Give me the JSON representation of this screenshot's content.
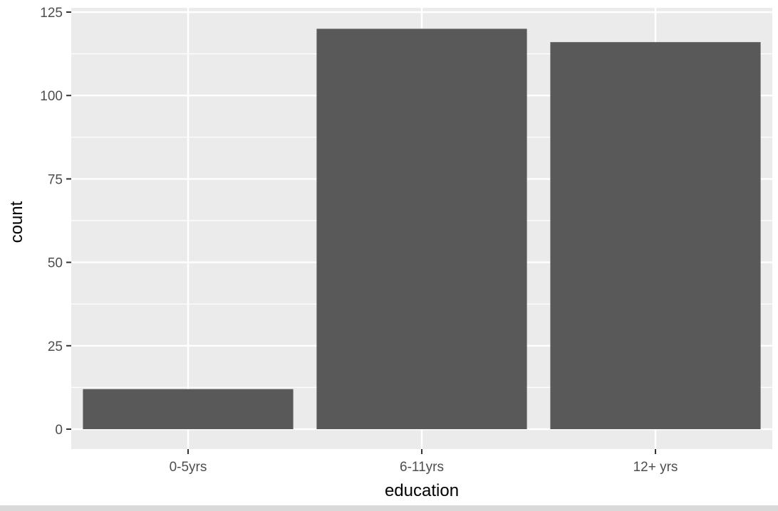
{
  "chart_data": {
    "type": "bar",
    "categories": [
      "0-5yrs",
      "6-11yrs",
      "12+ yrs"
    ],
    "values": [
      12,
      120,
      116
    ],
    "xlabel": "education",
    "ylabel": "count",
    "ylim": [
      0,
      125
    ],
    "yticks": [
      0,
      25,
      50,
      75,
      100,
      125
    ],
    "grid": true,
    "legend": "none",
    "colors": {
      "panel": "#ebebeb",
      "grid_major": "#ffffff",
      "bar": "#595959",
      "tick": "#333333",
      "tick_label": "#4d4d4d"
    }
  }
}
